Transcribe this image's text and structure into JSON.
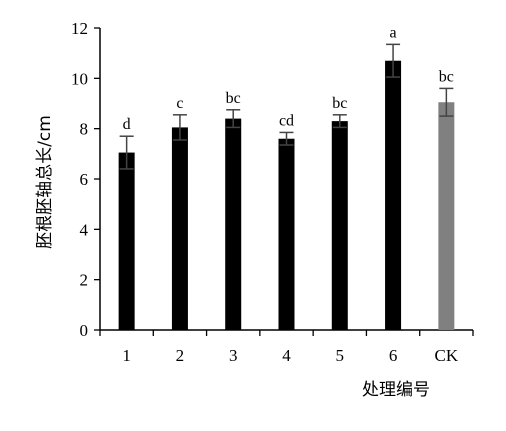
{
  "chart_data": {
    "type": "bar",
    "xlabel": "处理编号",
    "ylabel": "胚根胚轴总长/cm",
    "ylim": [
      0,
      12
    ],
    "yticks": [
      0,
      2,
      4,
      6,
      8,
      10,
      12
    ],
    "grid": false,
    "legend": "none",
    "categories": [
      "1",
      "2",
      "3",
      "4",
      "5",
      "6",
      "CK"
    ],
    "series": [
      {
        "values": [
          7.05,
          8.05,
          8.4,
          7.6,
          8.3,
          10.7,
          9.05
        ],
        "errors": [
          0.65,
          0.5,
          0.35,
          0.25,
          0.25,
          0.65,
          0.55
        ],
        "significance": [
          "d",
          "c",
          "bc",
          "cd",
          "bc",
          "a",
          "bc"
        ],
        "colors": [
          "#000000",
          "#000000",
          "#000000",
          "#000000",
          "#000000",
          "#000000",
          "#808080"
        ]
      }
    ]
  }
}
